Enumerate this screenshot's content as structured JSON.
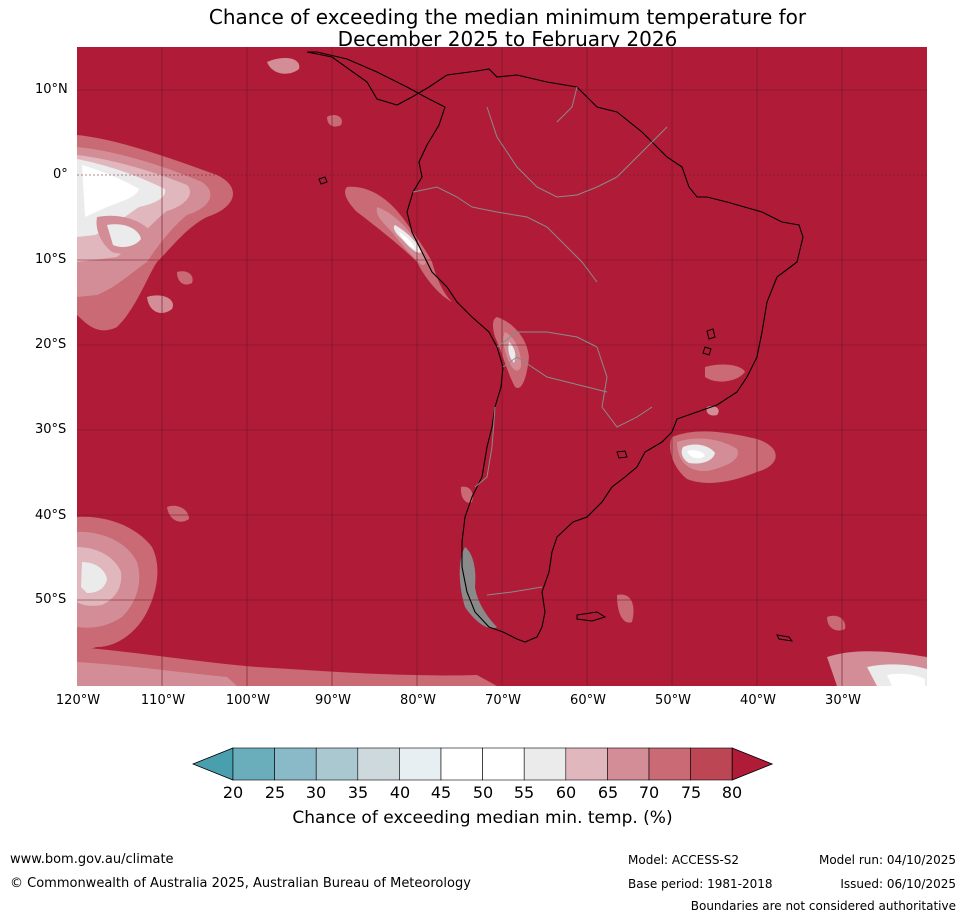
{
  "title": {
    "line1": "Chance of exceeding the median minimum temperature for",
    "line2": "December 2025 to February 2026"
  },
  "map": {
    "lat_labels": [
      "10°N",
      "0°",
      "10°S",
      "20°S",
      "30°S",
      "40°S",
      "50°S"
    ],
    "lon_labels": [
      "120°W",
      "110°W",
      "100°W",
      "90°W",
      "80°W",
      "70°W",
      "60°W",
      "50°W",
      "40°W",
      "30°W"
    ],
    "extent": {
      "lon_min": -120,
      "lon_max": -20,
      "lat_min": -60,
      "lat_max": 15
    },
    "background_color": "#b01c38"
  },
  "colorbar": {
    "ticks": [
      "20",
      "25",
      "30",
      "35",
      "40",
      "45",
      "50",
      "55",
      "60",
      "65",
      "70",
      "75",
      "80"
    ],
    "colors": [
      "#6aaebc",
      "#8ab9c7",
      "#a9c8cf",
      "#cdd9dd",
      "#e8eff2",
      "#ffffff",
      "#ffffff",
      "#ebebec",
      "#e1b7be",
      "#d38d96",
      "#c96a75",
      "#bd4655"
    ],
    "under_color": "#4a9fae",
    "over_color": "#b01c38",
    "label": "Chance of exceeding median min. temp. (%)"
  },
  "footer": {
    "website": "www.bom.gov.au/climate",
    "copyright": "© Commonwealth of Australia 2025, Australian Bureau of Meteorology",
    "model": "Model: ACCESS-S2",
    "base_period": "Base period: 1981-2018",
    "model_run": "Model run: 04/10/2025",
    "issued": "Issued: 06/10/2025",
    "disclaimer": "Boundaries are not considered authoritative"
  }
}
